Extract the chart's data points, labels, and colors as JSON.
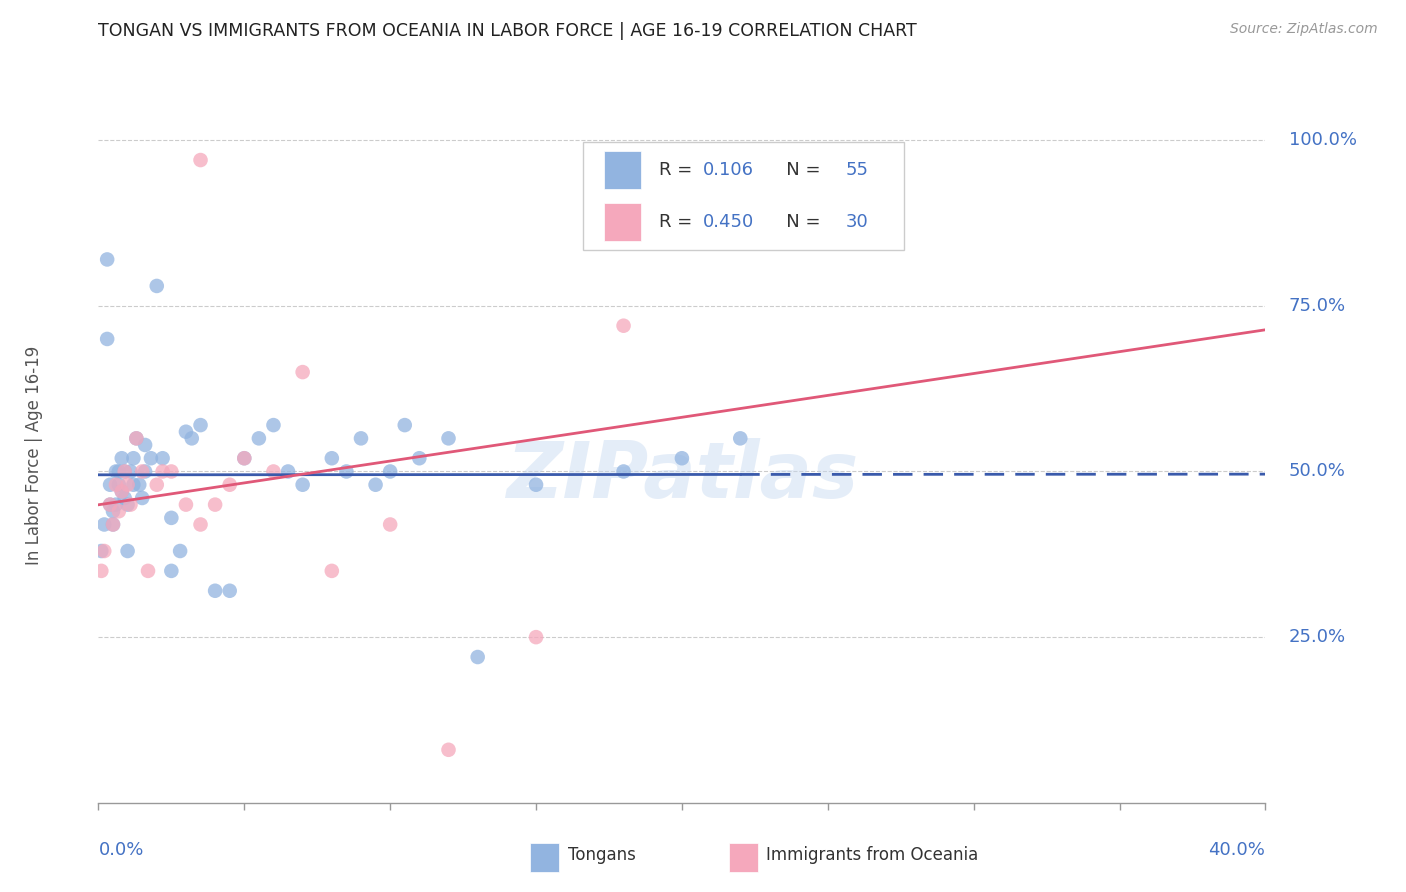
{
  "title": "TONGAN VS IMMIGRANTS FROM OCEANIA IN LABOR FORCE | AGE 16-19 CORRELATION CHART",
  "source": "Source: ZipAtlas.com",
  "ylabel": "In Labor Force | Age 16-19",
  "blue_color": "#92b4e0",
  "pink_color": "#f5a8bc",
  "blue_line_color": "#3a5aab",
  "pink_line_color": "#e05878",
  "axis_label_color": "#4472c4",
  "grid_color": "#cccccc",
  "tongans_x": [
    0.001,
    0.002,
    0.003,
    0.004,
    0.004,
    0.005,
    0.005,
    0.006,
    0.006,
    0.007,
    0.007,
    0.008,
    0.008,
    0.009,
    0.009,
    0.01,
    0.01,
    0.011,
    0.012,
    0.012,
    0.013,
    0.014,
    0.015,
    0.016,
    0.016,
    0.018,
    0.02,
    0.022,
    0.025,
    0.028,
    0.03,
    0.032,
    0.035,
    0.04,
    0.045,
    0.05,
    0.055,
    0.06,
    0.065,
    0.07,
    0.08,
    0.085,
    0.09,
    0.095,
    0.1,
    0.105,
    0.11,
    0.12,
    0.13,
    0.15,
    0.18,
    0.2,
    0.22,
    0.025,
    0.003
  ],
  "tongans_y": [
    0.38,
    0.42,
    0.82,
    0.45,
    0.48,
    0.42,
    0.44,
    0.45,
    0.5,
    0.48,
    0.5,
    0.52,
    0.47,
    0.5,
    0.46,
    0.45,
    0.38,
    0.5,
    0.48,
    0.52,
    0.55,
    0.48,
    0.46,
    0.5,
    0.54,
    0.52,
    0.78,
    0.52,
    0.35,
    0.38,
    0.56,
    0.55,
    0.57,
    0.32,
    0.32,
    0.52,
    0.55,
    0.57,
    0.5,
    0.48,
    0.52,
    0.5,
    0.55,
    0.48,
    0.5,
    0.57,
    0.52,
    0.55,
    0.22,
    0.48,
    0.5,
    0.52,
    0.55,
    0.43,
    0.7
  ],
  "oceania_x": [
    0.001,
    0.002,
    0.035,
    0.004,
    0.005,
    0.006,
    0.007,
    0.008,
    0.009,
    0.01,
    0.011,
    0.013,
    0.015,
    0.017,
    0.02,
    0.022,
    0.025,
    0.03,
    0.035,
    0.04,
    0.045,
    0.05,
    0.06,
    0.07,
    0.08,
    0.1,
    0.12,
    0.15,
    0.18,
    0.25
  ],
  "oceania_y": [
    0.35,
    0.38,
    0.97,
    0.45,
    0.42,
    0.48,
    0.44,
    0.47,
    0.5,
    0.48,
    0.45,
    0.55,
    0.5,
    0.35,
    0.48,
    0.5,
    0.5,
    0.45,
    0.42,
    0.45,
    0.48,
    0.52,
    0.5,
    0.65,
    0.35,
    0.42,
    0.08,
    0.25,
    0.72,
    0.87
  ],
  "legend_R1": "0.106",
  "legend_N1": "55",
  "legend_R2": "0.450",
  "legend_N2": "30",
  "xmin": 0.0,
  "xmax": 0.4,
  "ymin": 0.0,
  "ymax": 1.05,
  "yticks": [
    0.25,
    0.5,
    0.75,
    1.0
  ],
  "ytick_labels": [
    "25.0%",
    "50.0%",
    "75.0%",
    "100.0%"
  ],
  "xtick_label_left": "0.0%",
  "xtick_label_right": "40.0%",
  "watermark": "ZIPatlas",
  "legend_label1": "Tongans",
  "legend_label2": "Immigrants from Oceania"
}
